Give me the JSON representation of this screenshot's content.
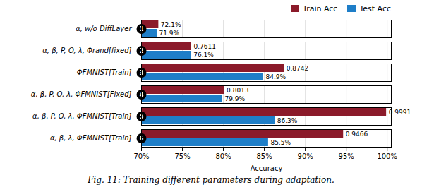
{
  "chart_data": {
    "type": "bar",
    "orientation": "horizontal",
    "categories": [
      "α, w/o DiffLayer",
      "α, β, P, O, λ, Φrand[fixed]",
      "ΦFMNIST[Train]",
      "α, β, P, O, λ, ΦFMNIST[Fixed]",
      "α, β, P, O, λ, ΦFMNIST[Train]",
      "α, β, λ, ΦFMNIST[Train]"
    ],
    "series": [
      {
        "name": "Train Acc",
        "color": "#8B1A2A",
        "values": [
          0.721,
          0.7611,
          0.8742,
          0.8013,
          0.9991,
          0.9466
        ],
        "value_labels": [
          "72.1%",
          "0.7611",
          "0.8742",
          "0.8013",
          "0.9991",
          "0.9466"
        ]
      },
      {
        "name": "Test Acc",
        "color": "#1E7EC8",
        "values": [
          0.719,
          0.761,
          0.849,
          0.799,
          0.863,
          0.855
        ],
        "value_labels": [
          "71.9%",
          "76.1%",
          "84.9%",
          "79.9%",
          "86.3%",
          "85.5%"
        ]
      }
    ],
    "xlabel": "Accuracy",
    "xlim": [
      0.7,
      1.005
    ],
    "xticks": [
      {
        "value": 0.7,
        "label": "70%"
      },
      {
        "value": 0.75,
        "label": "75%"
      },
      {
        "value": 0.8,
        "label": "80%"
      },
      {
        "value": 0.85,
        "label": "85%"
      },
      {
        "value": 0.9,
        "label": "90%"
      },
      {
        "value": 0.95,
        "label": "95%"
      },
      {
        "value": 1.0,
        "label": "100%"
      }
    ],
    "grid": true,
    "legend": "upper right",
    "data_labels": true,
    "annotations": [
      "1",
      "2",
      "3",
      "4",
      "5",
      "6"
    ],
    "caption": "Fig. 11: Training different parameters during adaptation."
  }
}
